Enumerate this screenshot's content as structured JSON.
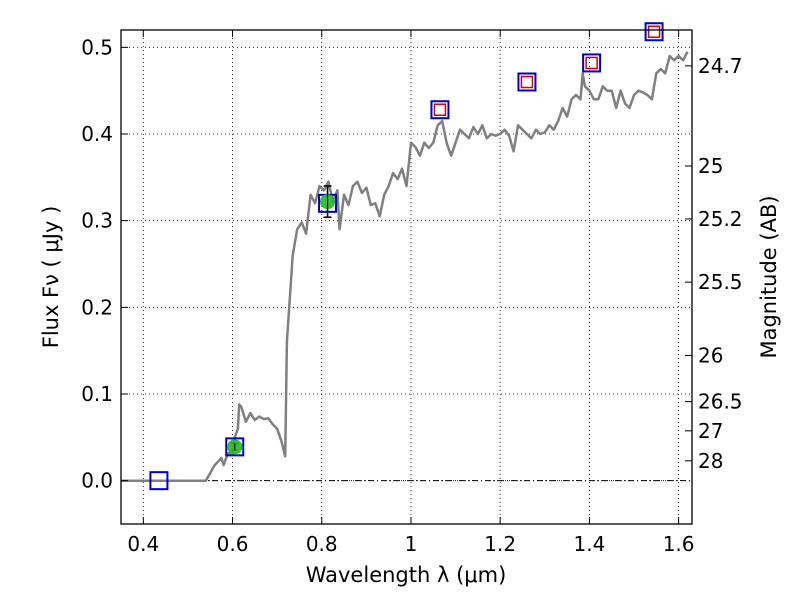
{
  "chart_data": {
    "type": "scatter",
    "xlabel": "Wavelength  λ (μm)",
    "ylabel": "Flux  Fν  ( μJy )",
    "y2label": "Magnitude (AB)",
    "xlim": [
      0.35,
      1.63
    ],
    "ylim": [
      -0.05,
      0.52
    ],
    "grid": true,
    "x_ticks": [
      {
        "value": 0.4,
        "label": "0.4"
      },
      {
        "value": 0.6,
        "label": "0.6"
      },
      {
        "value": 0.8,
        "label": "0.8"
      },
      {
        "value": 1.0,
        "label": "1"
      },
      {
        "value": 1.2,
        "label": "1.2"
      },
      {
        "value": 1.4,
        "label": "1.4"
      },
      {
        "value": 1.6,
        "label": "1.6"
      }
    ],
    "y_ticks": [
      {
        "value": 0.0,
        "label": "0.0"
      },
      {
        "value": 0.1,
        "label": "0.1"
      },
      {
        "value": 0.2,
        "label": "0.2"
      },
      {
        "value": 0.3,
        "label": "0.3"
      },
      {
        "value": 0.4,
        "label": "0.4"
      },
      {
        "value": 0.5,
        "label": "0.5"
      }
    ],
    "y2_ticks": [
      {
        "flux": 0.4786,
        "label": "24.7"
      },
      {
        "flux": 0.3631,
        "label": "25"
      },
      {
        "flux": 0.302,
        "label": "25.2"
      },
      {
        "flux": 0.2291,
        "label": "25.5"
      },
      {
        "flux": 0.1445,
        "label": "26"
      },
      {
        "flux": 0.0912,
        "label": "26.5"
      },
      {
        "flux": 0.0575,
        "label": "27"
      },
      {
        "flux": 0.0229,
        "label": "28"
      }
    ],
    "series": [
      {
        "kind": "line",
        "color": "#808080",
        "points": [
          [
            0.35,
            0.0
          ],
          [
            0.54,
            0.0
          ],
          [
            0.56,
            0.018
          ],
          [
            0.575,
            0.026
          ],
          [
            0.58,
            0.018
          ],
          [
            0.59,
            0.032
          ],
          [
            0.6,
            0.03
          ],
          [
            0.605,
            0.05
          ],
          [
            0.612,
            0.06
          ],
          [
            0.615,
            0.088
          ],
          [
            0.62,
            0.085
          ],
          [
            0.63,
            0.068
          ],
          [
            0.64,
            0.078
          ],
          [
            0.65,
            0.07
          ],
          [
            0.66,
            0.074
          ],
          [
            0.67,
            0.071
          ],
          [
            0.68,
            0.072
          ],
          [
            0.69,
            0.065
          ],
          [
            0.7,
            0.06
          ],
          [
            0.71,
            0.045
          ],
          [
            0.718,
            0.028
          ],
          [
            0.722,
            0.16
          ],
          [
            0.735,
            0.26
          ],
          [
            0.745,
            0.29
          ],
          [
            0.755,
            0.298
          ],
          [
            0.765,
            0.285
          ],
          [
            0.775,
            0.33
          ],
          [
            0.785,
            0.32
          ],
          [
            0.795,
            0.34
          ],
          [
            0.805,
            0.335
          ],
          [
            0.815,
            0.345
          ],
          [
            0.825,
            0.322
          ],
          [
            0.835,
            0.335
          ],
          [
            0.84,
            0.29
          ],
          [
            0.85,
            0.33
          ],
          [
            0.86,
            0.318
          ],
          [
            0.87,
            0.34
          ],
          [
            0.88,
            0.345
          ],
          [
            0.89,
            0.332
          ],
          [
            0.9,
            0.338
          ],
          [
            0.91,
            0.318
          ],
          [
            0.92,
            0.32
          ],
          [
            0.93,
            0.305
          ],
          [
            0.94,
            0.33
          ],
          [
            0.95,
            0.34
          ],
          [
            0.96,
            0.355
          ],
          [
            0.97,
            0.348
          ],
          [
            0.98,
            0.36
          ],
          [
            0.99,
            0.34
          ],
          [
            1.0,
            0.39
          ],
          [
            1.01,
            0.385
          ],
          [
            1.02,
            0.375
          ],
          [
            1.03,
            0.39
          ],
          [
            1.04,
            0.384
          ],
          [
            1.05,
            0.39
          ],
          [
            1.06,
            0.41
          ],
          [
            1.07,
            0.415
          ],
          [
            1.08,
            0.39
          ],
          [
            1.09,
            0.375
          ],
          [
            1.1,
            0.39
          ],
          [
            1.11,
            0.405
          ],
          [
            1.12,
            0.4
          ],
          [
            1.13,
            0.395
          ],
          [
            1.14,
            0.408
          ],
          [
            1.15,
            0.4
          ],
          [
            1.16,
            0.41
          ],
          [
            1.17,
            0.395
          ],
          [
            1.18,
            0.4
          ],
          [
            1.19,
            0.398
          ],
          [
            1.2,
            0.4
          ],
          [
            1.21,
            0.405
          ],
          [
            1.22,
            0.398
          ],
          [
            1.23,
            0.38
          ],
          [
            1.24,
            0.41
          ],
          [
            1.25,
            0.405
          ],
          [
            1.26,
            0.4
          ],
          [
            1.27,
            0.395
          ],
          [
            1.28,
            0.405
          ],
          [
            1.29,
            0.4
          ],
          [
            1.3,
            0.402
          ],
          [
            1.31,
            0.41
          ],
          [
            1.32,
            0.405
          ],
          [
            1.33,
            0.415
          ],
          [
            1.34,
            0.43
          ],
          [
            1.35,
            0.42
          ],
          [
            1.36,
            0.44
          ],
          [
            1.37,
            0.445
          ],
          [
            1.38,
            0.44
          ],
          [
            1.385,
            0.47
          ],
          [
            1.39,
            0.455
          ],
          [
            1.4,
            0.45
          ],
          [
            1.41,
            0.44
          ],
          [
            1.42,
            0.44
          ],
          [
            1.43,
            0.455
          ],
          [
            1.44,
            0.45
          ],
          [
            1.45,
            0.45
          ],
          [
            1.46,
            0.43
          ],
          [
            1.47,
            0.45
          ],
          [
            1.48,
            0.435
          ],
          [
            1.49,
            0.43
          ],
          [
            1.5,
            0.445
          ],
          [
            1.51,
            0.45
          ],
          [
            1.52,
            0.448
          ],
          [
            1.53,
            0.445
          ],
          [
            1.54,
            0.44
          ],
          [
            1.55,
            0.47
          ],
          [
            1.56,
            0.475
          ],
          [
            1.57,
            0.47
          ],
          [
            1.58,
            0.49
          ],
          [
            1.59,
            0.485
          ],
          [
            1.6,
            0.49
          ],
          [
            1.61,
            0.485
          ],
          [
            1.62,
            0.495
          ]
        ]
      },
      {
        "kind": "open-square",
        "color": "#0000cc",
        "points": [
          [
            0.435,
            0.0
          ],
          [
            0.605,
            0.039
          ],
          [
            0.813,
            0.32
          ],
          [
            1.065,
            0.428
          ],
          [
            1.26,
            0.46
          ],
          [
            1.405,
            0.482
          ],
          [
            1.545,
            0.518
          ]
        ]
      },
      {
        "kind": "open-square-inner",
        "color": "#dd0000",
        "points": [
          [
            1.065,
            0.428
          ],
          [
            1.26,
            0.46
          ],
          [
            1.405,
            0.482
          ],
          [
            1.545,
            0.518
          ]
        ]
      },
      {
        "kind": "filled-circle",
        "color": "#22bb22",
        "points": [
          [
            0.605,
            0.039
          ],
          [
            0.813,
            0.322
          ]
        ],
        "errors": [
          0.004,
          0.018
        ]
      }
    ]
  }
}
